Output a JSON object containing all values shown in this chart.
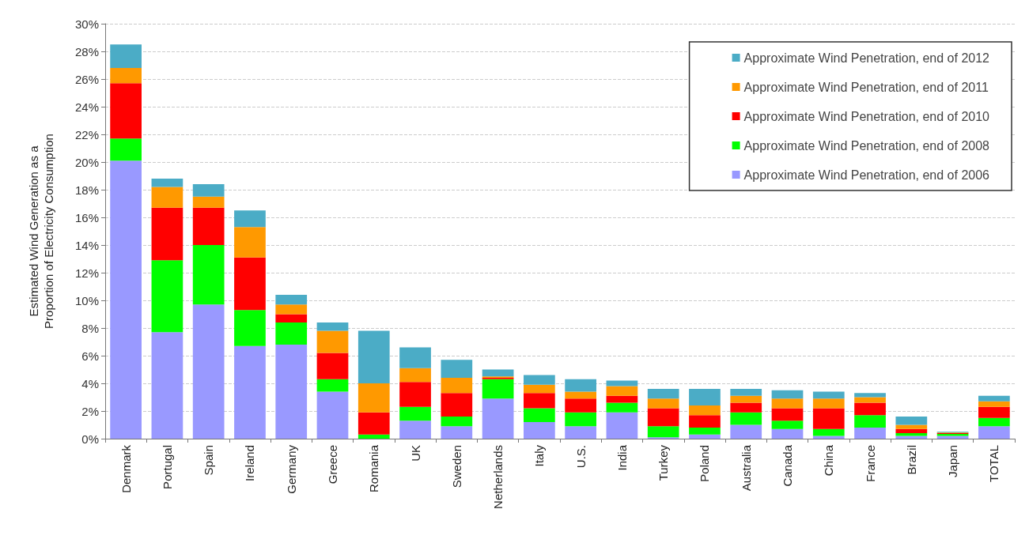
{
  "chart_data": {
    "type": "bar",
    "stacked": true,
    "ylabel": "Estimated Wind Generation as a\nProportion of Electricity Consumption",
    "categories": [
      "Denmark",
      "Portugal",
      "Spain",
      "Ireland",
      "Germany",
      "Greece",
      "Romania",
      "UK",
      "Sweden",
      "Netherlands",
      "Italy",
      "U.S.",
      "India",
      "Turkey",
      "Poland",
      "Australia",
      "Canada",
      "China",
      "France",
      "Brazil",
      "Japan",
      "TOTAL"
    ],
    "series": [
      {
        "name": "Approximate Wind Penetration, end of 2006",
        "color": "#9999ff",
        "values": [
          20.1,
          7.7,
          9.7,
          6.7,
          6.8,
          3.4,
          0,
          1.3,
          0.9,
          2.9,
          1.2,
          0.9,
          1.9,
          0.1,
          0.3,
          1.0,
          0.7,
          0.2,
          0.8,
          0.2,
          0.2,
          0.9
        ]
      },
      {
        "name": "Approximate Wind Penetration, end of 2008",
        "color": "#00ff00",
        "values": [
          1.6,
          5.2,
          4.3,
          2.6,
          1.6,
          0.9,
          0.3,
          1.0,
          0.7,
          1.4,
          1.0,
          1.0,
          0.7,
          0.8,
          0.5,
          0.9,
          0.6,
          0.5,
          0.9,
          0.2,
          0.15,
          0.6
        ]
      },
      {
        "name": "Approximate Wind Penetration, end of 2010",
        "color": "#ff0000",
        "values": [
          4.0,
          3.8,
          2.7,
          3.8,
          0.6,
          1.9,
          1.6,
          1.8,
          1.7,
          0.1,
          1.1,
          1.0,
          0.5,
          1.3,
          0.9,
          0.7,
          0.9,
          1.5,
          0.9,
          0.3,
          0.05,
          0.8
        ]
      },
      {
        "name": "Approximate Wind Penetration, end of 2011",
        "color": "#ff9900",
        "values": [
          1.1,
          1.5,
          0.8,
          2.2,
          0.7,
          1.6,
          2.1,
          1.0,
          1.1,
          0.1,
          0.6,
          0.5,
          0.7,
          0.7,
          0.7,
          0.5,
          0.7,
          0.7,
          0.4,
          0.3,
          0.05,
          0.4
        ]
      },
      {
        "name": "Approximate Wind Penetration, end of 2012",
        "color": "#4bacc6",
        "values": [
          1.7,
          0.6,
          0.9,
          1.2,
          0.7,
          0.6,
          3.8,
          1.5,
          1.3,
          0.5,
          0.7,
          0.9,
          0.4,
          0.7,
          1.2,
          0.5,
          0.6,
          0.5,
          0.3,
          0.6,
          0.05,
          0.4
        ]
      }
    ],
    "ylim": [
      0,
      30
    ],
    "yticks": [
      {
        "value": 0,
        "label": "0%"
      },
      {
        "value": 2,
        "label": "2%"
      },
      {
        "value": 4,
        "label": "4%"
      },
      {
        "value": 6,
        "label": "6%"
      },
      {
        "value": 8,
        "label": "8%"
      },
      {
        "value": 10,
        "label": "10%"
      },
      {
        "value": 12,
        "label": "12%"
      },
      {
        "value": 14,
        "label": "14%"
      },
      {
        "value": 16,
        "label": "16%"
      },
      {
        "value": 18,
        "label": "18%"
      },
      {
        "value": 20,
        "label": "20%"
      },
      {
        "value": 22,
        "label": "22%"
      },
      {
        "value": 24,
        "label": "24%"
      },
      {
        "value": 26,
        "label": "26%"
      },
      {
        "value": 28,
        "label": "28%"
      },
      {
        "value": 30,
        "label": "30%"
      }
    ],
    "grid": "y",
    "legend": "top right"
  }
}
